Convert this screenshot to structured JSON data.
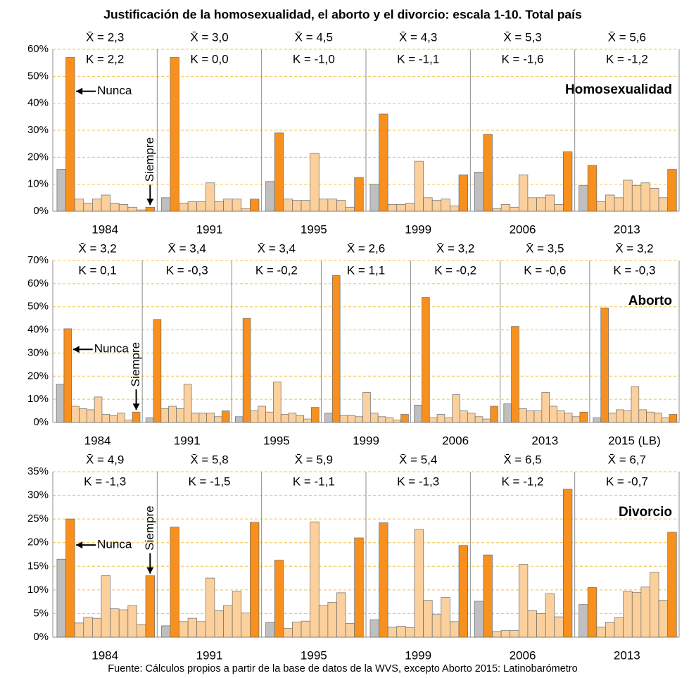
{
  "title": "Justificación de la homosexualidad, el aborto y el divorcio: escala 1-10. Total país",
  "source": "Fuente: Cálculos propios a partir de la base de datos de la WVS, excepto Aborto 2015: Latinobarómetro",
  "chart_data": [
    {
      "type": "bar",
      "label": "Homosexualidad",
      "colors": [
        "#bfbfbf",
        "#f7901e",
        "#fbd09c",
        "#fbd09c",
        "#fbd09c",
        "#fbd09c",
        "#fbd09c",
        "#fbd09c",
        "#fbd09c",
        "#fbd09c",
        "#f7901e"
      ],
      "ylim": [
        0,
        60
      ],
      "yticks": [
        {
          "value": 0,
          "label": "0%"
        },
        {
          "value": 10,
          "label": "10%"
        },
        {
          "value": 20,
          "label": "20%"
        },
        {
          "value": 30,
          "label": "30%"
        },
        {
          "value": 40,
          "label": "40%"
        },
        {
          "value": 50,
          "label": "50%"
        },
        {
          "value": 60,
          "label": "60%"
        }
      ],
      "grid": true,
      "annotations": {
        "low": "Nunca",
        "high": "Siempre"
      },
      "groups": [
        {
          "name": "1984",
          "mean": "X̄ = 2,3",
          "k": "K = 2,2",
          "values": [
            15.5,
            57,
            4.5,
            3,
            4.5,
            6,
            3,
            2.5,
            1.5,
            0.5,
            1.5
          ]
        },
        {
          "name": "1991",
          "mean": "X̄ = 3,0",
          "k": "K = 0,0",
          "values": [
            5,
            57,
            3,
            3.5,
            3.5,
            10.5,
            3.5,
            4.5,
            4.5,
            1,
            4.5
          ]
        },
        {
          "name": "1995",
          "mean": "X̄ = 4,5",
          "k": "K = -1,0",
          "values": [
            11,
            29,
            4.5,
            4,
            4,
            21.5,
            4.5,
            4.5,
            4,
            1.5,
            12.5
          ]
        },
        {
          "name": "1999",
          "mean": "X̄ = 4,3",
          "k": "K = -1,1",
          "values": [
            10,
            36,
            2.5,
            2.5,
            3,
            18.5,
            5,
            4,
            4.5,
            2,
            13.5
          ]
        },
        {
          "name": "2006",
          "mean": "X̄ = 5,3",
          "k": "K = -1,6",
          "values": [
            14.5,
            28.5,
            1,
            2.5,
            1.5,
            13.5,
            5,
            5,
            6,
            2.5,
            22
          ]
        },
        {
          "name": "2013",
          "mean": "X̄ = 5,6",
          "k": "K = -1,2",
          "values": [
            9.5,
            17,
            3.5,
            6,
            5,
            11.5,
            9.5,
            10.5,
            8.5,
            5,
            15.5
          ]
        }
      ]
    },
    {
      "type": "bar",
      "label": "Aborto",
      "colors": [
        "#bfbfbf",
        "#f7901e",
        "#fbd09c",
        "#fbd09c",
        "#fbd09c",
        "#fbd09c",
        "#fbd09c",
        "#fbd09c",
        "#fbd09c",
        "#fbd09c",
        "#f7901e"
      ],
      "ylim": [
        0,
        70
      ],
      "yticks": [
        {
          "value": 0,
          "label": "0%"
        },
        {
          "value": 10,
          "label": "10%"
        },
        {
          "value": 20,
          "label": "20%"
        },
        {
          "value": 30,
          "label": "30%"
        },
        {
          "value": 40,
          "label": "40%"
        },
        {
          "value": 50,
          "label": "50%"
        },
        {
          "value": 60,
          "label": "60%"
        },
        {
          "value": 70,
          "label": "70%"
        }
      ],
      "grid": true,
      "annotations": {
        "low": "Nunca",
        "high": "Siempre"
      },
      "groups": [
        {
          "name": "1984",
          "mean": "X̄ = 3,2",
          "k": "K = 0,1",
          "values": [
            16.5,
            40.5,
            7,
            6,
            5.5,
            11,
            3.5,
            3,
            4,
            1,
            4.5
          ]
        },
        {
          "name": "1991",
          "mean": "X̄ = 3,4",
          "k": "K = -0,3",
          "values": [
            2,
            44.5,
            6,
            7,
            6,
            16.5,
            4,
            4,
            4,
            2.5,
            5
          ]
        },
        {
          "name": "1995",
          "mean": "X̄ = 3,4",
          "k": "K = -0,2",
          "values": [
            2.5,
            45,
            5,
            7,
            4.5,
            17.5,
            3.5,
            4,
            3,
            1.5,
            6.5
          ]
        },
        {
          "name": "1999",
          "mean": "X̄ = 2,6",
          "k": "K = 1,1",
          "values": [
            4,
            63.5,
            3,
            3,
            2.5,
            13,
            4,
            2.5,
            2,
            1,
            3.5
          ]
        },
        {
          "name": "2006",
          "mean": "X̄ = 3,2",
          "k": "K = -0,2",
          "values": [
            7.5,
            54,
            2,
            3.5,
            2,
            12,
            5,
            4,
            2.5,
            1.5,
            7
          ]
        },
        {
          "name": "2013",
          "mean": "X̄ = 3,5",
          "k": "K = -0,6",
          "values": [
            8,
            41.5,
            6,
            5,
            5,
            13,
            7,
            5,
            4,
            2.5,
            4.5
          ]
        },
        {
          "name": "2015 (LB)",
          "mean": "X̄ = 3,2",
          "k": "K = -0,3",
          "values": [
            2,
            49.5,
            4,
            5.5,
            5,
            15.5,
            5.5,
            4.5,
            4,
            2,
            3.5
          ]
        }
      ]
    },
    {
      "type": "bar",
      "label": "Divorcio",
      "colors": [
        "#bfbfbf",
        "#f7901e",
        "#fbd09c",
        "#fbd09c",
        "#fbd09c",
        "#fbd09c",
        "#fbd09c",
        "#fbd09c",
        "#fbd09c",
        "#fbd09c",
        "#f7901e"
      ],
      "ylim": [
        0,
        35
      ],
      "yticks": [
        {
          "value": 0,
          "label": "0%"
        },
        {
          "value": 5,
          "label": "5%"
        },
        {
          "value": 10,
          "label": "10%"
        },
        {
          "value": 15,
          "label": "15%"
        },
        {
          "value": 20,
          "label": "20%"
        },
        {
          "value": 25,
          "label": "25%"
        },
        {
          "value": 30,
          "label": "30%"
        },
        {
          "value": 35,
          "label": "35%"
        }
      ],
      "grid": true,
      "annotations": {
        "low": "Nunca",
        "high": "Siempre"
      },
      "groups": [
        {
          "name": "1984",
          "mean": "X̄ = 4,9",
          "k": "K = -1,3",
          "values": [
            16.5,
            25,
            3,
            4.2,
            4,
            13,
            6,
            5.8,
            6.7,
            2.7,
            13
          ]
        },
        {
          "name": "1991",
          "mean": "X̄ = 5,8",
          "k": "K = -1,5",
          "values": [
            2.4,
            23.3,
            3.3,
            4,
            3.3,
            12.5,
            5.6,
            6.7,
            9.7,
            5.1,
            24.3
          ]
        },
        {
          "name": "1995",
          "mean": "X̄ = 5,9",
          "k": "K = -1,1",
          "values": [
            3.1,
            16.3,
            1.9,
            3.2,
            3.4,
            24.4,
            6.7,
            7.4,
            9.4,
            2.9,
            21
          ]
        },
        {
          "name": "1999",
          "mean": "X̄ = 5,4",
          "k": "K = -1,3",
          "values": [
            3.7,
            24.2,
            2.1,
            2.3,
            2,
            22.8,
            7.8,
            4.8,
            8.4,
            3.3,
            19.4
          ]
        },
        {
          "name": "2006",
          "mean": "X̄ = 6,5",
          "k": "K = -1,2",
          "values": [
            7.6,
            17.4,
            1.2,
            1.4,
            1.4,
            15.4,
            5.6,
            5,
            9.2,
            4.3,
            31.3
          ]
        },
        {
          "name": "2013",
          "mean": "X̄ = 6,7",
          "k": "K = -0,7",
          "values": [
            6.9,
            10.5,
            2.1,
            3.1,
            4.1,
            9.7,
            9.5,
            10.6,
            13.7,
            7.8,
            22.2
          ]
        }
      ]
    }
  ]
}
